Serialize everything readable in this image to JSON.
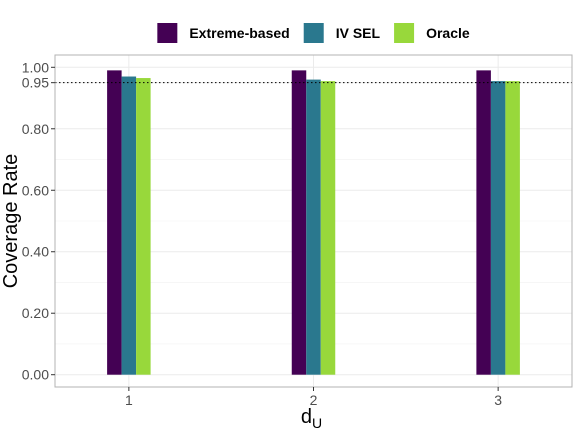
{
  "chart_data": {
    "type": "bar",
    "categories": [
      "1",
      "2",
      "3"
    ],
    "series": [
      {
        "name": "Extreme-based",
        "values": [
          0.99,
          0.99,
          0.99
        ],
        "color": "#440154"
      },
      {
        "name": "IV SEL",
        "values": [
          0.97,
          0.96,
          0.955
        ],
        "color": "#2a788e"
      },
      {
        "name": "Oracle",
        "values": [
          0.965,
          0.955,
          0.955
        ],
        "color": "#98d83b"
      }
    ],
    "title": "",
    "xlabel": "d",
    "xlabel_subscript": "U",
    "ylabel": "Coverage Rate",
    "ylim": [
      -0.04,
      1.04
    ],
    "yticks": [
      {
        "value": 0.0,
        "label": "0.00"
      },
      {
        "value": 0.2,
        "label": "0.20"
      },
      {
        "value": 0.4,
        "label": "0.40"
      },
      {
        "value": 0.6,
        "label": "0.60"
      },
      {
        "value": 0.8,
        "label": "0.80"
      },
      {
        "value": 0.95,
        "label": "0.95"
      },
      {
        "value": 1.0,
        "label": "1.00"
      }
    ],
    "reference_line": {
      "value": 0.95,
      "style": "dotted",
      "color": "#000000"
    },
    "grid": true,
    "legend_position": "top"
  }
}
